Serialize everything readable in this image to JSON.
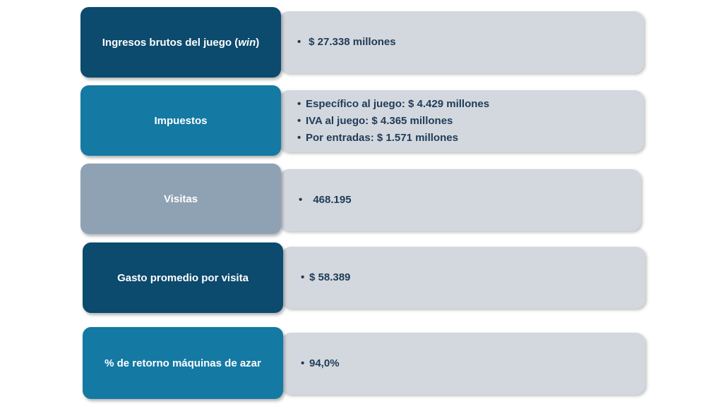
{
  "rows": [
    {
      "label_before": "Ingresos brutos del juego (",
      "label_italic": "win",
      "label_after": ")",
      "color": "#0c4a6e",
      "items": [
        "$ 27.338 millones"
      ]
    },
    {
      "label": "Impuestos",
      "color": "#1479a3",
      "items": [
        "Específico al juego: $  4.429 millones",
        "IVA al juego: $  4.365 millones",
        "Por entradas: $  1.571 millones"
      ]
    },
    {
      "label": "Visitas",
      "color": "#8fa2b4",
      "items": [
        "468.195"
      ]
    },
    {
      "label": "Gasto promedio por visita",
      "color": "#0c4a6e",
      "items": [
        "$  58.389"
      ]
    },
    {
      "label": "% de retorno máquinas de azar",
      "color": "#1479a3",
      "items": [
        "94,0%"
      ]
    }
  ],
  "bullet_glyph": "•"
}
